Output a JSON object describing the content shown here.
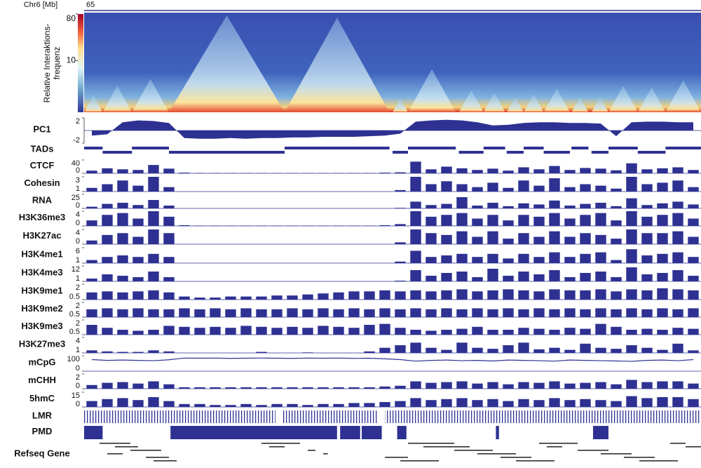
{
  "chart_data": {
    "type": "genome-browser",
    "axis_label": "Chr6 [Mb]",
    "x_start": 65,
    "xlim": [
      0,
      40
    ],
    "color": "#2e3192",
    "heatmap": {
      "ylabel": [
        "Relative Interaktions-",
        "frequenz"
      ],
      "clim": [
        1,
        80
      ],
      "log": true,
      "colorbar_ticks": [
        80,
        10
      ]
    },
    "tracks": [
      {
        "name": "PC1",
        "type": "area",
        "ylim": [
          -2,
          2
        ],
        "yticks": [
          2,
          -2
        ],
        "values": [
          -0.8,
          -0.6,
          1.3,
          1.6,
          1.5,
          1.2,
          -1.2,
          -1.3,
          -1.3,
          -1.2,
          -1.3,
          -1.2,
          -1.2,
          -1.1,
          -1.1,
          -1.0,
          -1.0,
          -1.0,
          -0.9,
          -0.8,
          -0.5,
          1.4,
          1.6,
          1.7,
          1.6,
          1.3,
          0.8,
          0.9,
          1.2,
          1.3,
          1.3,
          1.2,
          1.2,
          1.1,
          -0.9,
          1.3,
          1.4,
          1.4,
          1.3,
          1.3
        ]
      },
      {
        "name": "TADs",
        "type": "segments",
        "segments": [
          [
            0,
            1.2
          ],
          [
            1.2,
            3.1
          ],
          [
            3.1,
            5.5
          ],
          [
            5.5,
            13
          ],
          [
            13,
            19.8
          ],
          [
            20,
            21
          ],
          [
            21,
            24.1
          ],
          [
            24.3,
            25.9
          ],
          [
            25.9,
            27.3
          ],
          [
            27.4,
            28.5
          ],
          [
            28.5,
            29.8
          ],
          [
            29.8,
            31.5
          ],
          [
            31.6,
            32.7
          ],
          [
            32.9,
            34
          ],
          [
            34,
            35.9
          ],
          [
            35.9,
            37.7
          ],
          [
            37.7,
            40
          ]
        ]
      },
      {
        "name": "CTCF",
        "type": "bar",
        "ylim": [
          0,
          40
        ],
        "yticks": [
          40,
          0
        ],
        "values": [
          8,
          15,
          12,
          10,
          25,
          14,
          2,
          1,
          1,
          1,
          1,
          1,
          1,
          1,
          1,
          1,
          1,
          1,
          1,
          2,
          3,
          35,
          12,
          20,
          15,
          10,
          14,
          8,
          18,
          12,
          22,
          10,
          16,
          14,
          9,
          30,
          12,
          15,
          18,
          10
        ]
      },
      {
        "name": "Cohesin",
        "type": "bar",
        "ylim": [
          1,
          3
        ],
        "yticks": [
          3,
          1
        ],
        "values": [
          1.5,
          2,
          2.5,
          1.8,
          3,
          1.6,
          1,
          1,
          1,
          1,
          1,
          1,
          1,
          1,
          1,
          1,
          1,
          1,
          1,
          1,
          1.2,
          3,
          2,
          2.4,
          2,
          1.6,
          2.2,
          1.5,
          2.5,
          1.8,
          2.8,
          1.6,
          2,
          1.8,
          1.4,
          3,
          2,
          2.2,
          2.5,
          1.6
        ]
      },
      {
        "name": "RNA",
        "type": "bar",
        "ylim": [
          0,
          25
        ],
        "yticks": [
          25,
          0
        ],
        "values": [
          3,
          8,
          10,
          6,
          15,
          5,
          0,
          0,
          0,
          0,
          0,
          0,
          0,
          0,
          0,
          0,
          0,
          0,
          0,
          0,
          1,
          12,
          6,
          8,
          20,
          5,
          10,
          4,
          9,
          7,
          14,
          5,
          8,
          10,
          4,
          18,
          6,
          9,
          12,
          7
        ]
      },
      {
        "name": "H3K36me3",
        "type": "bar",
        "ylim": [
          0,
          4
        ],
        "yticks": [
          4,
          0
        ],
        "values": [
          1.5,
          3,
          3.5,
          2,
          4,
          2.5,
          0.2,
          0.1,
          0.1,
          0.1,
          0.1,
          0.1,
          0.1,
          0.1,
          0.1,
          0.1,
          0.1,
          0.1,
          0.1,
          0.2,
          0.5,
          4,
          2.5,
          3,
          3.5,
          2,
          3,
          1.5,
          3,
          2.5,
          3.5,
          2,
          3,
          3.5,
          1.5,
          4,
          2.5,
          3,
          3.5,
          2
        ]
      },
      {
        "name": "H3K27ac",
        "type": "bar",
        "ylim": [
          0,
          4
        ],
        "yticks": [
          4,
          0
        ],
        "values": [
          1,
          2.5,
          3,
          2,
          4,
          3,
          0,
          0,
          0,
          0,
          0,
          0,
          0,
          0,
          0,
          0,
          0,
          0,
          0,
          0,
          0.5,
          4,
          3,
          2.5,
          3.5,
          2,
          3.5,
          1.5,
          3,
          2,
          3.5,
          2,
          3,
          2.5,
          1.5,
          4,
          3,
          3,
          3.5,
          2
        ]
      },
      {
        "name": "H3K4me1",
        "type": "bar",
        "ylim": [
          1,
          6
        ],
        "yticks": [
          6,
          1
        ],
        "values": [
          2,
          3,
          3.5,
          3,
          4,
          3,
          1,
          1,
          1,
          1,
          1,
          1,
          1,
          1,
          1,
          1,
          1,
          1,
          1,
          1,
          1.5,
          5,
          3,
          3.5,
          4,
          3,
          4,
          2.5,
          4,
          3,
          4.5,
          3,
          4,
          4.5,
          2,
          5.5,
          3.5,
          4,
          4.5,
          3
        ]
      },
      {
        "name": "H3K4me3",
        "type": "bar",
        "ylim": [
          1,
          12
        ],
        "yticks": [
          12,
          1
        ],
        "values": [
          3,
          6,
          5,
          4,
          8,
          4,
          1,
          1,
          1,
          1,
          1,
          1,
          1,
          1,
          1,
          1,
          1,
          1,
          1,
          1,
          1.5,
          9,
          5,
          7,
          8,
          4,
          10,
          5,
          8,
          6,
          9,
          4,
          7,
          8,
          4,
          11,
          6,
          7,
          9,
          5
        ]
      },
      {
        "name": "H3K9me1",
        "type": "bar",
        "ylim": [
          0.5,
          2
        ],
        "yticks": [
          2,
          0.5
        ],
        "values": [
          1.2,
          1.3,
          1.2,
          1.3,
          1.4,
          1.2,
          0.8,
          0.7,
          0.7,
          0.8,
          0.8,
          0.8,
          0.9,
          0.9,
          1,
          1.1,
          1.2,
          1.3,
          1.3,
          1.4,
          1.3,
          1.4,
          1.3,
          1.4,
          1.5,
          1.3,
          1.4,
          1.5,
          1.4,
          1.3,
          1.5,
          1.4,
          1.4,
          1.5,
          1.3,
          1.5,
          1.4,
          1.6,
          1.5,
          1.4
        ]
      },
      {
        "name": "H3K9me2",
        "type": "bar",
        "ylim": [
          0.5,
          2
        ],
        "yticks": [
          2,
          0.5
        ],
        "values": [
          1.3,
          1.4,
          1.3,
          1.4,
          1.3,
          1.3,
          1.4,
          1.3,
          1.4,
          1.3,
          1.4,
          1.3,
          1.3,
          1.4,
          1.3,
          1.4,
          1.3,
          1.4,
          1.3,
          1.4,
          1.3,
          1.4,
          1.3,
          1.4,
          1.3,
          1.4,
          1.3,
          1.4,
          1.3,
          1.4,
          1.3,
          1.4,
          1.3,
          1.4,
          1.3,
          1.4,
          1.3,
          1.4,
          1.3,
          1.4
        ]
      },
      {
        "name": "H3K9me3",
        "type": "bar",
        "ylim": [
          0.5,
          2
        ],
        "yticks": [
          2,
          0.5
        ],
        "values": [
          1.5,
          1.2,
          1.0,
          0.9,
          1.0,
          1.4,
          1.3,
          1.2,
          1.3,
          1.2,
          1.4,
          1.3,
          1.2,
          1.3,
          1.2,
          1.4,
          1.3,
          1.2,
          1.5,
          1.6,
          1.2,
          1.0,
          0.9,
          1.0,
          1.1,
          1.3,
          1.0,
          1.0,
          1.2,
          1.1,
          1.0,
          1.2,
          1.1,
          1.6,
          1.3,
          1.0,
          1.1,
          1.0,
          1.2,
          1.1
        ]
      },
      {
        "name": "H3K27me3",
        "type": "bar",
        "ylim": [
          1,
          4
        ],
        "yticks": [
          4,
          1
        ],
        "values": [
          1.5,
          1.3,
          1.2,
          1.2,
          1.5,
          1.3,
          1,
          1,
          1,
          1,
          1,
          1.2,
          1,
          1,
          1.1,
          1,
          1,
          1,
          1.3,
          2,
          2.5,
          3,
          2,
          1.6,
          3,
          2,
          1.8,
          2.5,
          3,
          1.7,
          2,
          1.6,
          2.8,
          2,
          1.8,
          2.5,
          2,
          1.6,
          2.8,
          1.5
        ]
      },
      {
        "name": "mCpG",
        "type": "line",
        "ylim": [
          0,
          100
        ],
        "yticks": [
          100,
          0
        ],
        "values": [
          75,
          70,
          72,
          70,
          68,
          74,
          85,
          84,
          85,
          83,
          84,
          85,
          84,
          83,
          85,
          84,
          85,
          83,
          84,
          80,
          75,
          65,
          70,
          72,
          68,
          70,
          66,
          72,
          70,
          68,
          65,
          72,
          70,
          68,
          66,
          64,
          70,
          72,
          68,
          75
        ]
      },
      {
        "name": "mCHH",
        "type": "bar",
        "ylim": [
          0,
          2
        ],
        "yticks": [
          2,
          0
        ],
        "values": [
          0.5,
          0.8,
          0.9,
          0.7,
          1,
          0.6,
          0.2,
          0.2,
          0.2,
          0.2,
          0.2,
          0.2,
          0.2,
          0.2,
          0.2,
          0.2,
          0.2,
          0.2,
          0.2,
          0.3,
          0.4,
          1,
          0.8,
          0.9,
          1,
          0.7,
          0.9,
          0.6,
          0.9,
          0.8,
          1,
          0.7,
          0.8,
          0.9,
          0.6,
          1.2,
          0.9,
          1,
          1,
          0.7
        ]
      },
      {
        "name": "5hmC",
        "type": "bar",
        "ylim": [
          0,
          15
        ],
        "yticks": [
          15,
          0
        ],
        "values": [
          6,
          8,
          9,
          7,
          10,
          6,
          3,
          3,
          2,
          2,
          3,
          2,
          3,
          3,
          2,
          3,
          3,
          4,
          4,
          5,
          6,
          9,
          7,
          8,
          9,
          7,
          8,
          6,
          8,
          7,
          9,
          7,
          8,
          7,
          6,
          11,
          9,
          10,
          10,
          8
        ]
      },
      {
        "name": "LMR",
        "type": "segments",
        "segments": [
          [
            0,
            12.4
          ],
          [
            12.8,
            19
          ],
          [
            19.5,
            40
          ]
        ]
      },
      {
        "name": "PMD",
        "type": "segments",
        "segments": [
          [
            0,
            1.2
          ],
          [
            5.6,
            16.4
          ],
          [
            16.6,
            17.9
          ],
          [
            18,
            19.3
          ],
          [
            20.3,
            20.9
          ],
          [
            26.7,
            26.9
          ],
          [
            33,
            34
          ]
        ]
      },
      {
        "name": "Refseq Gene",
        "type": "genes",
        "segments": [
          [
            1,
            3
          ],
          [
            2,
            3.5
          ],
          [
            3,
            5
          ],
          [
            1.5,
            2.5
          ],
          [
            4,
            5.5
          ],
          [
            4.5,
            6
          ],
          [
            11.5,
            14
          ],
          [
            12,
            13
          ],
          [
            14.5,
            15
          ],
          [
            15.5,
            15.8
          ],
          [
            19.5,
            21
          ],
          [
            20.5,
            23
          ],
          [
            21,
            24
          ],
          [
            22,
            25
          ],
          [
            24,
            26.5
          ],
          [
            25.5,
            28
          ],
          [
            27,
            29
          ],
          [
            28,
            30.5
          ],
          [
            29.5,
            32
          ],
          [
            30,
            31
          ],
          [
            32,
            34
          ],
          [
            33.5,
            35.5
          ],
          [
            35,
            37
          ],
          [
            36,
            38.5
          ],
          [
            38,
            39
          ],
          [
            39,
            40
          ]
        ]
      }
    ]
  }
}
